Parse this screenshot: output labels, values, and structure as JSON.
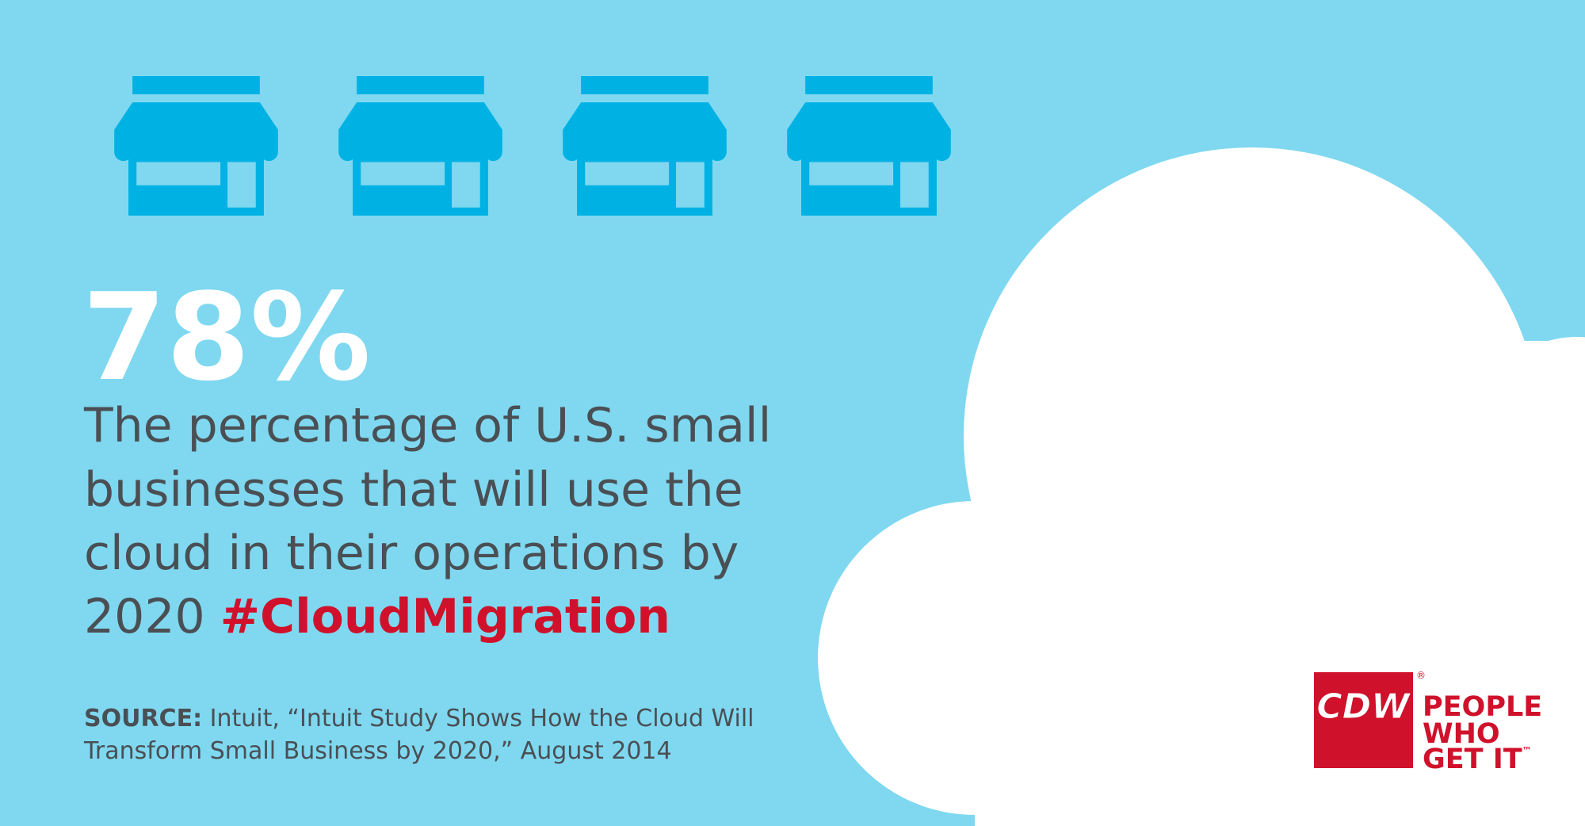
{
  "stat": "78%",
  "description": {
    "lines": [
      "The percentage of U.S. small",
      "businesses that will use the",
      "cloud in their operations by",
      "2020"
    ],
    "hashtag": "#CloudMigration"
  },
  "source": {
    "label": "SOURCE:",
    "lines": [
      "Intuit, “Intuit Study Shows How the Cloud Will",
      "Transform Small Business by 2020,” August 2014"
    ]
  },
  "logo": {
    "mark": "CDW",
    "registered": "®",
    "tagline": [
      "PEOPLE",
      "WHO",
      "GET IT"
    ],
    "trademark": "™"
  }
}
